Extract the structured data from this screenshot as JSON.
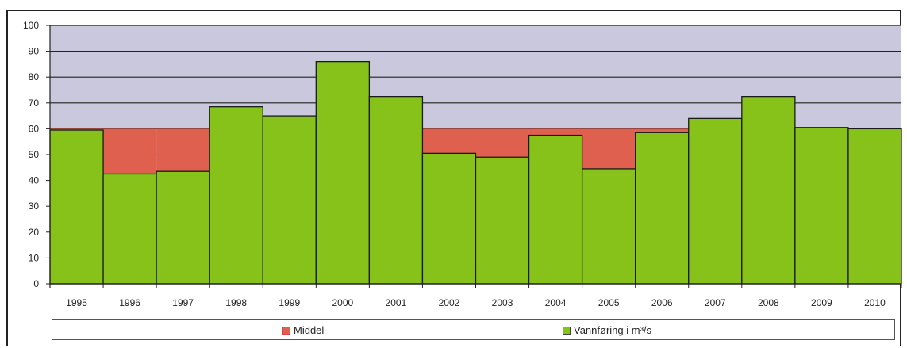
{
  "chart_data": {
    "type": "bar",
    "categories": [
      "1995",
      "1996",
      "1997",
      "1998",
      "1999",
      "2000",
      "2001",
      "2002",
      "2003",
      "2004",
      "2005",
      "2006",
      "2007",
      "2008",
      "2009",
      "2010"
    ],
    "series": [
      {
        "name": "Middel",
        "values": [
          60,
          60,
          60,
          60,
          60,
          60,
          60,
          60,
          60,
          60,
          60,
          60,
          60,
          60,
          60,
          60
        ],
        "color": "#e06050"
      },
      {
        "name": "Vannføring i m³/s",
        "values": [
          59.5,
          42.5,
          43.5,
          68.5,
          65,
          86,
          72.5,
          50.5,
          49,
          57.5,
          44.5,
          58.5,
          64,
          72.5,
          60.5,
          60
        ],
        "color": "#86c21a"
      }
    ],
    "yticks": [
      0,
      10,
      20,
      30,
      40,
      50,
      60,
      70,
      80,
      90,
      100
    ],
    "ylim": [
      0,
      100
    ],
    "grid": true,
    "plot_background": "#c9c8dc",
    "legend_position": "bottom"
  }
}
